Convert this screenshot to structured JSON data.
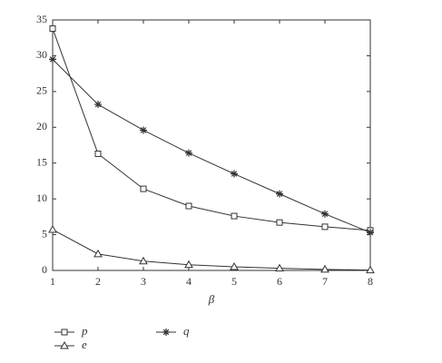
{
  "chart_data": {
    "type": "line",
    "x_label": "β",
    "x": [
      1,
      2,
      3,
      4,
      5,
      6,
      7,
      8
    ],
    "xlim": [
      1,
      8
    ],
    "xticks": [
      1,
      2,
      3,
      4,
      5,
      6,
      7,
      8
    ],
    "ylim": [
      0,
      35
    ],
    "yticks": [
      0,
      5,
      10,
      15,
      20,
      25,
      30,
      35
    ],
    "series": [
      {
        "name": "p",
        "color": "#333333",
        "marker": "square",
        "values": [
          33.8,
          16.3,
          11.4,
          9.0,
          7.6,
          6.7,
          6.1,
          5.6
        ]
      },
      {
        "name": "q",
        "color": "#333333",
        "marker": "asterisk",
        "values": [
          29.5,
          23.2,
          19.6,
          16.4,
          13.5,
          10.7,
          7.9,
          5.3
        ]
      },
      {
        "name": "e",
        "color": "#333333",
        "marker": "triangle",
        "values": [
          5.7,
          2.3,
          1.3,
          0.8,
          0.5,
          0.3,
          0.15,
          0.05
        ]
      }
    ]
  }
}
